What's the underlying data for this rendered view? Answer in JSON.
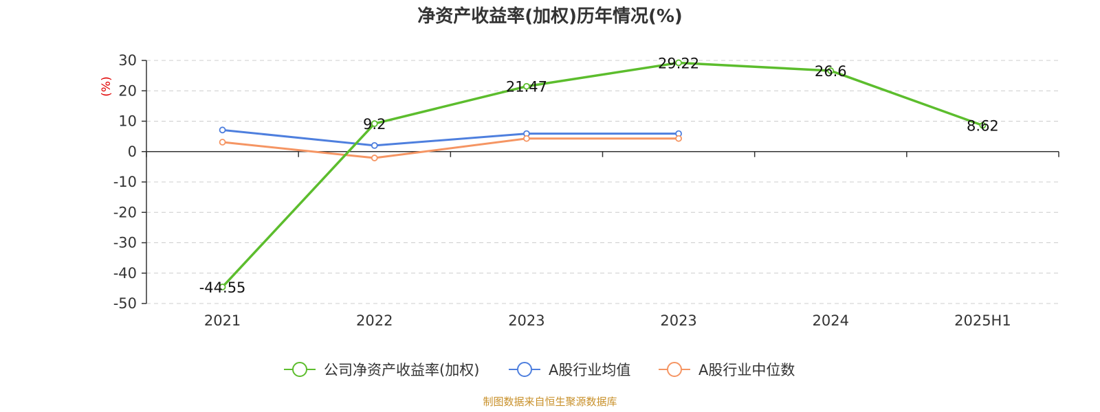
{
  "chart_data": {
    "type": "line",
    "title": "净资产收益率(加权)历年情况(%)",
    "ylabel": "(%)",
    "xlabel": "",
    "categories": [
      "2021",
      "2022",
      "2023",
      "2023",
      "2024",
      "2025H1"
    ],
    "ylim": [
      -50,
      30
    ],
    "yticks": [
      30,
      20,
      10,
      0,
      -10,
      -20,
      -30,
      -40,
      -50
    ],
    "grid": true,
    "legend_position": "bottom",
    "series": [
      {
        "name": "公司净资产收益率(加权)",
        "color": "#5cbd2d",
        "values": [
          -44.55,
          9.2,
          21.47,
          29.22,
          26.6,
          8.62
        ],
        "labels": [
          "-44.55",
          "9.2",
          "21.47",
          "29.22",
          "26.6",
          "8.62"
        ]
      },
      {
        "name": "A股行业均值",
        "color": "#4e7fde",
        "values": [
          7.1,
          2.0,
          5.9,
          5.9,
          null,
          null
        ]
      },
      {
        "name": "A股行业中位数",
        "color": "#f59563",
        "values": [
          3.1,
          -2.1,
          4.3,
          4.3,
          null,
          null
        ]
      }
    ],
    "source": "制图数据来自恒生聚源数据库"
  }
}
